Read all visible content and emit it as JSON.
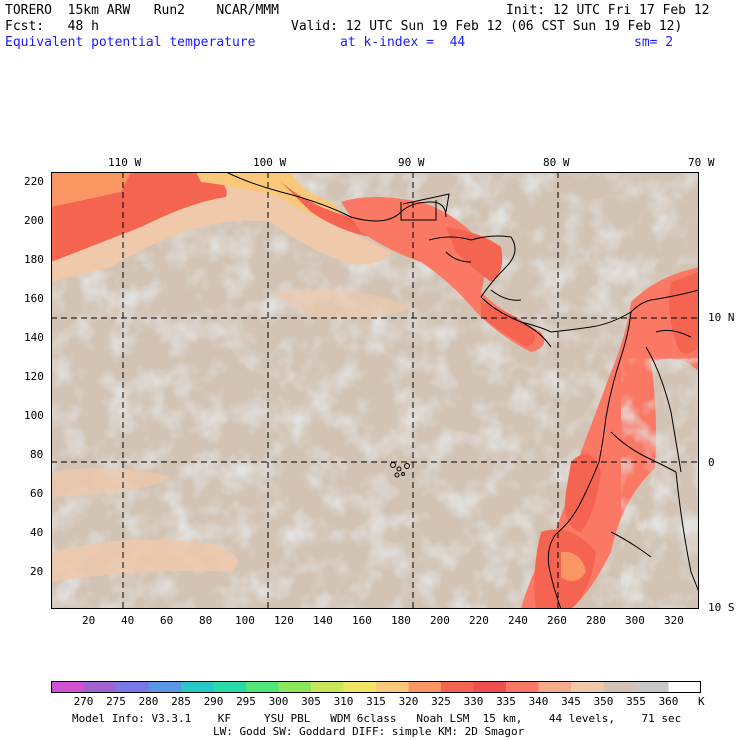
{
  "header": {
    "model": "TORERO  15km ARW   Run2    NCAR/MMM",
    "init": "Init: 12 UTC Fri 17 Feb 12",
    "fcst": "Fcst:   48 h",
    "valid": "Valid: 12 UTC Sun 19 Feb 12 (06 CST Sun 19 Feb 12)",
    "field": "Equivalent potential temperature",
    "level": "at k-index =  44",
    "smooth": "sm= 2"
  },
  "map": {
    "lon_labels": [
      "110 W",
      "100 W",
      "90 W",
      "80 W",
      "70 W"
    ],
    "lat_labels": [
      "10 N",
      "0",
      "10 S"
    ],
    "y_ticks": [
      "220",
      "200",
      "180",
      "160",
      "140",
      "120",
      "100",
      "80",
      "60",
      "40",
      "20"
    ],
    "x_ticks": [
      "20",
      "40",
      "60",
      "80",
      "100",
      "120",
      "140",
      "160",
      "180",
      "200",
      "220",
      "240",
      "260",
      "280",
      "300",
      "320"
    ]
  },
  "colorbar": {
    "labels": [
      "270",
      "275",
      "280",
      "285",
      "290",
      "295",
      "300",
      "305",
      "310",
      "315",
      "320",
      "325",
      "330",
      "335",
      "340",
      "345",
      "350",
      "355",
      "360"
    ],
    "unit": "K",
    "colors": [
      "#d250d2",
      "#a064d2",
      "#7878e6",
      "#5a96e6",
      "#28c8c8",
      "#28dcaa",
      "#50e678",
      "#8ce65a",
      "#c8e65a",
      "#f0e664",
      "#fac878",
      "#fa9664",
      "#f56450",
      "#f05050",
      "#fa7864",
      "#f5aa8c",
      "#f0c8aa",
      "#d2c3b4",
      "#c8c8c8",
      "#ffffff"
    ]
  },
  "footer": {
    "line1": "Model Info: V3.3.1    KF     YSU PBL   WDM 6class   Noah LSM  15 km,    44 levels,    71 sec",
    "line2": "LW: Godd SW: Goddard DIFF: simple KM: 2D Smagor"
  }
}
